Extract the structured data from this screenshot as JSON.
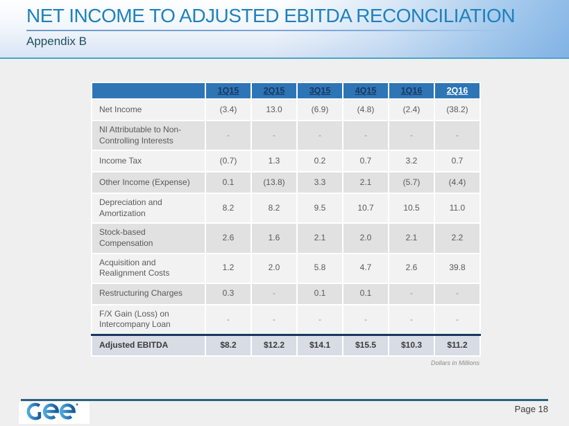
{
  "slide": {
    "title": "NET INCOME TO ADJUSTED EBITDA RECONCILIATION",
    "subtitle": "Appendix B",
    "footnote": "Dollars in Millions",
    "page_label": "Page 18",
    "logo_name": "gee-logo"
  },
  "colors": {
    "title_blue": "#1F81BE",
    "subtitle_teal": "#1E4E5F",
    "header_band_rule": "#4BA3C7",
    "table_header_bg": "#2E75B6",
    "table_header_text_dark": "#17375E",
    "table_header_text_light": "#FFFFFF",
    "row_light": "#F2F2F2",
    "row_dark": "#E1E1E1",
    "total_row_bg": "#D7DCE5",
    "total_row_border": "#17375E",
    "cell_text": "#595959",
    "footer_line": "#2D5F79"
  },
  "table": {
    "columns": [
      "1Q15",
      "2Q15",
      "3Q15",
      "4Q15",
      "1Q16",
      "2Q16"
    ],
    "rows": [
      {
        "label": "Net Income",
        "values": [
          "(3.4)",
          "13.0",
          "(6.9)",
          "(4.8)",
          "(2.4)",
          "(38.2)"
        ]
      },
      {
        "label": "NI Attributable to Non-Controlling Interests",
        "values": [
          "-",
          "-",
          "-",
          "-",
          "-",
          "-"
        ]
      },
      {
        "label": "Income Tax",
        "values": [
          "(0.7)",
          "1.3",
          "0.2",
          "0.7",
          "3.2",
          "0.7"
        ]
      },
      {
        "label": "Other Income (Expense)",
        "values": [
          "0.1",
          "(13.8)",
          "3.3",
          "2.1",
          "(5.7)",
          "(4.4)"
        ]
      },
      {
        "label": "Depreciation and Amortization",
        "values": [
          "8.2",
          "8.2",
          "9.5",
          "10.7",
          "10.5",
          "11.0"
        ]
      },
      {
        "label": "Stock-based Compensation",
        "values": [
          "2.6",
          "1.6",
          "2.1",
          "2.0",
          "2.1",
          "2.2"
        ]
      },
      {
        "label": "Acquisition and Realignment Costs",
        "values": [
          "1.2",
          "2.0",
          "5.8",
          "4.7",
          "2.6",
          "39.8"
        ]
      },
      {
        "label": "Restructuring Charges",
        "values": [
          "0.3",
          "-",
          "0.1",
          "0.1",
          "-",
          "-"
        ]
      },
      {
        "label": "F/X Gain (Loss) on Intercompany Loan",
        "values": [
          "-",
          "-",
          "-",
          "-",
          "-",
          "-"
        ]
      }
    ],
    "total_row": {
      "label": "Adjusted EBITDA",
      "values": [
        "$8.2",
        "$12.2",
        "$14.1",
        "$15.5",
        "$10.3",
        "$11.2"
      ]
    }
  }
}
